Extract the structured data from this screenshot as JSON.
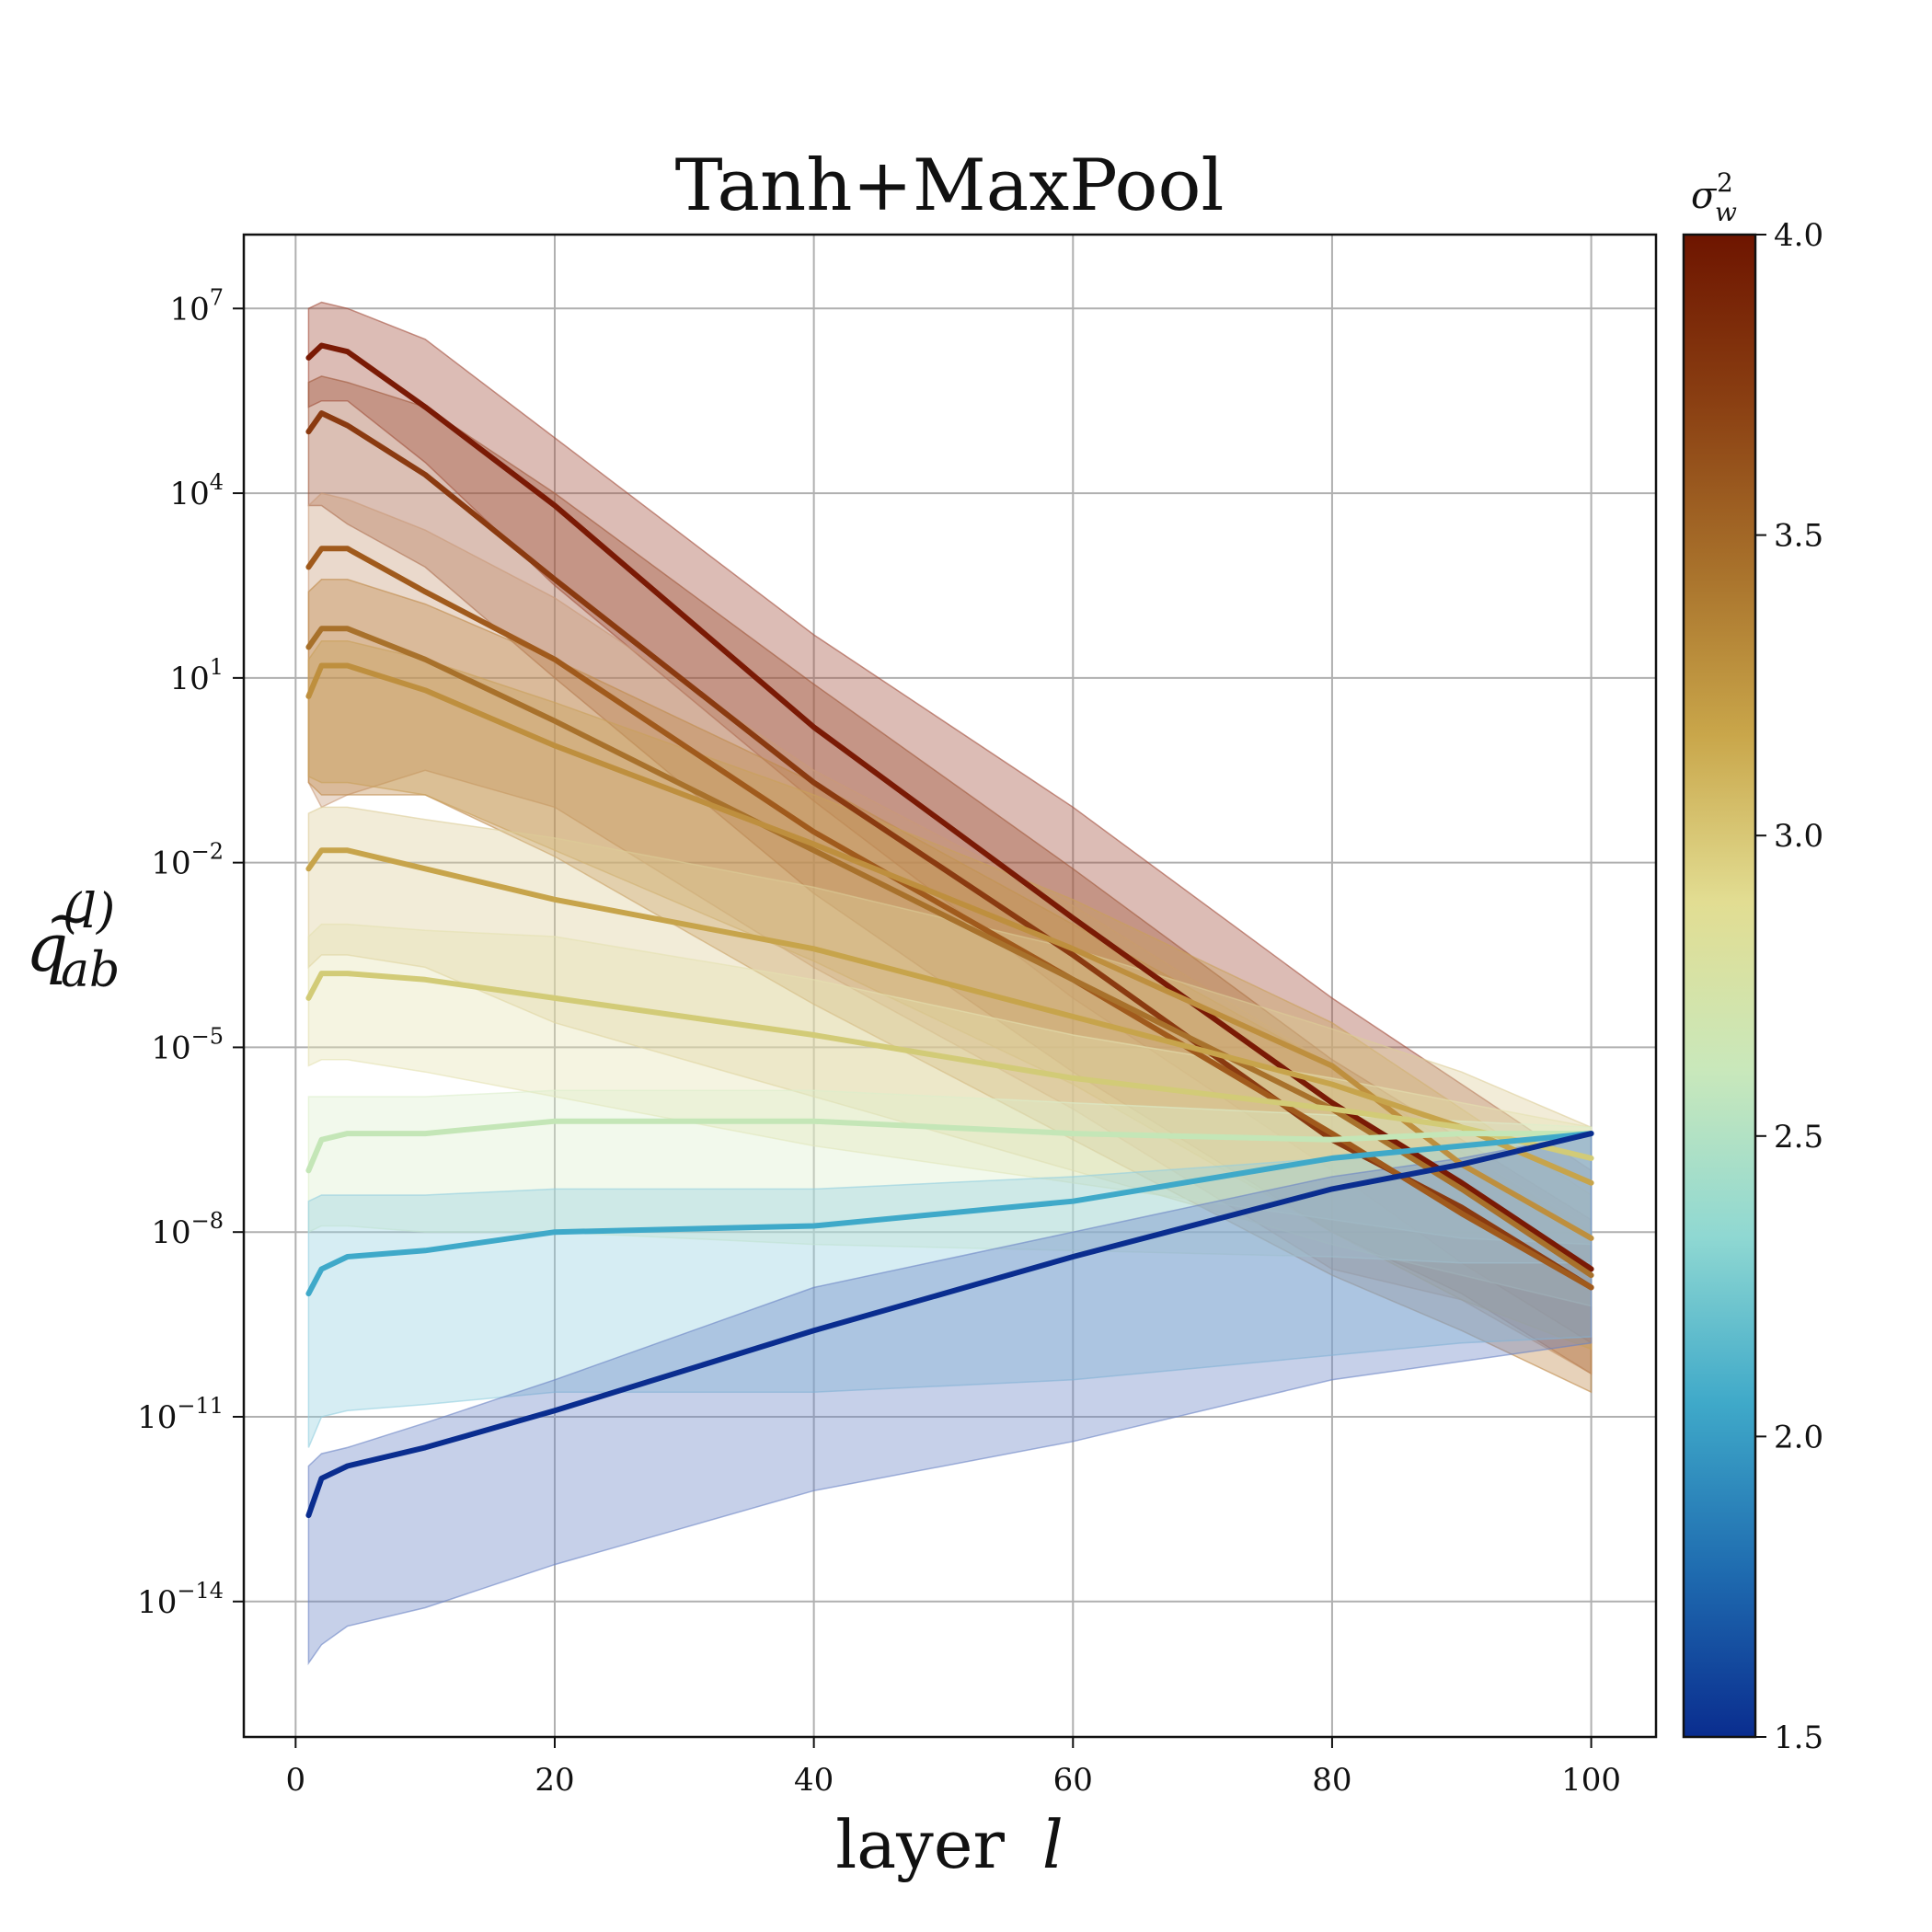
{
  "chart_data": {
    "type": "line",
    "title": "Tanh+MaxPool",
    "xlabel_text": "layer",
    "xlabel_var": "l",
    "ylabel": {
      "base": "q",
      "sub": "ab",
      "sup": "(l)"
    },
    "x_range": [
      -4,
      105
    ],
    "x_ticks": [
      0,
      20,
      40,
      60,
      80,
      100
    ],
    "y_scale": "log",
    "y_exponent_range": [
      -16.2,
      8.2
    ],
    "y_tick_exponents": [
      7,
      4,
      1,
      -2,
      -5,
      -8,
      -11,
      -14
    ],
    "grid": true,
    "colorbar": {
      "label": {
        "base": "σ",
        "sub": "w",
        "sup": "2"
      },
      "range": [
        1.5,
        4.0
      ],
      "ticks": [
        "1.5",
        "2.0",
        "2.5",
        "3.0",
        "3.5",
        "4.0"
      ],
      "colors": [
        "#0a2d8f",
        "#1f6cb0",
        "#3fa9c9",
        "#8fd8d2",
        "#c9e8bb",
        "#e2dd92",
        "#c9a64a",
        "#a8712b",
        "#8a3f12",
        "#6e1500"
      ]
    },
    "series_note": "log10 of y values at layers x",
    "series": [
      {
        "sigma_w2": 4.0,
        "color": "#7a1a05",
        "band_color": "#a44f3c",
        "x": [
          1,
          2,
          4,
          10,
          20,
          40,
          60,
          80,
          90,
          100
        ],
        "log10_mean": [
          6.2,
          6.4,
          6.3,
          5.4,
          3.8,
          0.2,
          -2.9,
          -5.9,
          -7.2,
          -8.6
        ],
        "log10_upper": [
          7.0,
          7.1,
          7.0,
          6.5,
          4.9,
          1.7,
          -1.1,
          -4.2,
          -5.6,
          -7.0
        ],
        "log10_lower": [
          5.4,
          5.5,
          5.5,
          4.5,
          2.5,
          -1.0,
          -4.2,
          -7.0,
          -8.5,
          -9.8
        ]
      },
      {
        "sigma_w2": 3.7,
        "color": "#8a3a10",
        "band_color": "#a0583a",
        "x": [
          1,
          2,
          4,
          10,
          20,
          40,
          60,
          80,
          90,
          100
        ],
        "log10_mean": [
          5.0,
          5.3,
          5.1,
          4.3,
          2.6,
          -0.7,
          -3.5,
          -6.5,
          -7.6,
          -8.9
        ],
        "log10_upper": [
          5.8,
          5.9,
          5.8,
          5.4,
          4.0,
          0.9,
          -2.1,
          -5.2,
          -6.5,
          -7.8
        ],
        "log10_lower": [
          3.8,
          3.8,
          3.5,
          2.8,
          1.0,
          -2.5,
          -5.4,
          -8.0,
          -9.0,
          -10.3
        ]
      },
      {
        "sigma_w2": 3.4,
        "color": "#a05a1c",
        "band_color": "#c99a78",
        "x": [
          1,
          2,
          4,
          10,
          20,
          40,
          60,
          80,
          90,
          100
        ],
        "log10_mean": [
          2.8,
          3.1,
          3.1,
          2.4,
          1.3,
          -1.5,
          -3.9,
          -6.4,
          -7.7,
          -8.9
        ],
        "log10_upper": [
          3.8,
          4.0,
          3.9,
          3.4,
          2.3,
          -0.5,
          -2.7,
          -5.3,
          -6.7,
          -7.9
        ],
        "log10_lower": [
          -0.7,
          -1.1,
          -0.9,
          -0.5,
          -1.1,
          -3.7,
          -6.0,
          -8.6,
          -9.1,
          -10.3
        ]
      },
      {
        "sigma_w2": 3.2,
        "color": "#a8712b",
        "band_color": "#bf8a4a",
        "x": [
          1,
          2,
          4,
          10,
          20,
          40,
          60,
          80,
          90,
          100
        ],
        "log10_mean": [
          1.5,
          1.8,
          1.8,
          1.3,
          0.3,
          -1.8,
          -3.9,
          -6.0,
          -7.3,
          -8.7
        ],
        "log10_upper": [
          2.4,
          2.6,
          2.6,
          2.2,
          1.3,
          -0.7,
          -3.0,
          -5.3,
          -6.7,
          -8.0
        ],
        "log10_lower": [
          -0.7,
          -0.9,
          -0.9,
          -0.9,
          -1.9,
          -4.3,
          -6.5,
          -8.7,
          -9.6,
          -10.6
        ]
      },
      {
        "sigma_w2": 3.0,
        "color": "#be8f3e",
        "band_color": "#c9a05a",
        "x": [
          1,
          2,
          4,
          10,
          20,
          40,
          60,
          80,
          90,
          100
        ],
        "log10_mean": [
          0.7,
          1.2,
          1.2,
          0.8,
          -0.1,
          -1.7,
          -3.4,
          -5.3,
          -6.9,
          -8.1
        ],
        "log10_upper": [
          1.3,
          1.6,
          1.6,
          1.3,
          0.6,
          -0.9,
          -2.6,
          -4.6,
          -6.0,
          -7.4
        ],
        "log10_lower": [
          -0.6,
          -0.7,
          -0.7,
          -0.9,
          -1.8,
          -3.6,
          -5.6,
          -8.0,
          -9.1,
          -9.9
        ]
      },
      {
        "sigma_w2": 2.7,
        "color": "#c7a44b",
        "band_color": "#dccd98",
        "x": [
          1,
          2,
          4,
          10,
          20,
          40,
          60,
          80,
          90,
          100
        ],
        "log10_mean": [
          -2.1,
          -1.8,
          -1.8,
          -2.1,
          -2.6,
          -3.4,
          -4.5,
          -5.6,
          -6.3,
          -7.2
        ],
        "log10_upper": [
          -1.2,
          -1.1,
          -1.1,
          -1.3,
          -1.6,
          -2.4,
          -3.4,
          -4.7,
          -5.4,
          -6.3
        ],
        "log10_lower": [
          -3.7,
          -3.5,
          -3.5,
          -3.7,
          -4.6,
          -5.8,
          -7.0,
          -8.2,
          -8.7,
          -9.2
        ]
      },
      {
        "sigma_w2": 2.5,
        "color": "#d2cb77",
        "band_color": "#e4e1b0",
        "x": [
          1,
          2,
          4,
          10,
          20,
          40,
          60,
          80,
          90,
          100
        ],
        "log10_mean": [
          -4.2,
          -3.8,
          -3.8,
          -3.9,
          -4.2,
          -4.8,
          -5.5,
          -6.0,
          -6.3,
          -6.8
        ],
        "log10_upper": [
          -3.2,
          -3.0,
          -3.0,
          -3.1,
          -3.2,
          -3.9,
          -4.8,
          -5.5,
          -5.9,
          -6.3
        ],
        "log10_lower": [
          -5.3,
          -5.2,
          -5.2,
          -5.4,
          -5.8,
          -6.6,
          -7.2,
          -7.8,
          -8.1,
          -8.2
        ]
      },
      {
        "sigma_w2": 2.2,
        "color": "#c4e6b7",
        "band_color": "#dcefcc",
        "x": [
          1,
          2,
          4,
          10,
          20,
          40,
          60,
          80,
          90,
          100
        ],
        "log10_mean": [
          -7.0,
          -6.5,
          -6.4,
          -6.4,
          -6.2,
          -6.2,
          -6.4,
          -6.5,
          -6.4,
          -6.4
        ],
        "log10_upper": [
          -5.8,
          -5.8,
          -5.8,
          -5.8,
          -5.7,
          -5.7,
          -5.9,
          -6.1,
          -6.2,
          -6.3
        ],
        "log10_lower": [
          -8.0,
          -7.9,
          -7.9,
          -8.0,
          -8.0,
          -8.2,
          -8.3,
          -8.4,
          -8.5,
          -8.5
        ]
      },
      {
        "sigma_w2": 1.8,
        "color": "#3fa9c9",
        "band_color": "#92cfdf",
        "x": [
          1,
          2,
          4,
          10,
          20,
          40,
          60,
          80,
          90,
          100
        ],
        "log10_mean": [
          -9.0,
          -8.6,
          -8.4,
          -8.3,
          -8.0,
          -7.9,
          -7.5,
          -6.8,
          -6.6,
          -6.4
        ],
        "log10_upper": [
          -7.5,
          -7.4,
          -7.4,
          -7.4,
          -7.3,
          -7.3,
          -7.1,
          -6.8,
          -6.6,
          -6.4
        ],
        "log10_lower": [
          -11.5,
          -11.0,
          -10.9,
          -10.8,
          -10.6,
          -10.6,
          -10.4,
          -10.0,
          -9.8,
          -9.7
        ]
      },
      {
        "sigma_w2": 1.5,
        "color": "#0a2d8f",
        "band_color": "#6a84c4",
        "x": [
          1,
          2,
          4,
          10,
          20,
          40,
          60,
          80,
          90,
          100
        ],
        "log10_mean": [
          -12.6,
          -12.0,
          -11.8,
          -11.5,
          -10.9,
          -9.6,
          -8.4,
          -7.3,
          -6.9,
          -6.4
        ],
        "log10_upper": [
          -11.8,
          -11.6,
          -11.5,
          -11.1,
          -10.4,
          -8.9,
          -8.0,
          -7.1,
          -6.8,
          -6.4
        ],
        "log10_lower": [
          -15.0,
          -14.7,
          -14.4,
          -14.1,
          -13.4,
          -12.2,
          -11.4,
          -10.4,
          -10.1,
          -9.8
        ]
      }
    ]
  }
}
